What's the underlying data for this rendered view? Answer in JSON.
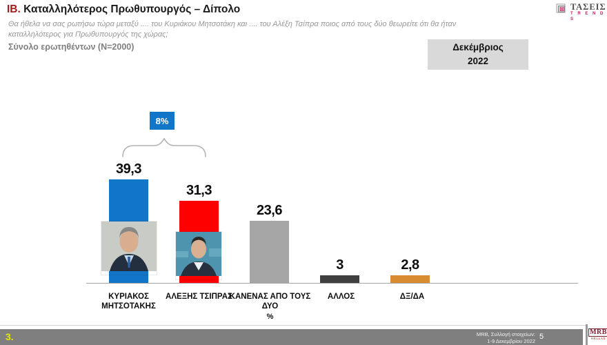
{
  "header": {
    "section_prefix": "ΙΒ.",
    "title": "Καταλληλότερος Πρωθυπουργός – Δίπολο",
    "question_line1": "Θα ήθελα να σας ρωτήσω τώρα μεταξύ .... του Κυριάκου Μητσοτάκη και .... του  Αλέξη Τσίπρα ποιος από τους δύο θεωρείτε ότι θα ήταν",
    "question_line2": "καταλληλότερος για Πρωθυπουργός της χώρας;",
    "sample": "Σύνολο ερωτηθέντων (N=2000)",
    "period": {
      "line1": "Δεκέμβριος",
      "line2": "2022"
    },
    "brand": {
      "name": "ΤΑΣΕΙΣ",
      "subname": "T R E N D S"
    }
  },
  "chart_data": {
    "type": "bar",
    "title": "Καταλληλότερος Πρωθυπουργός – Δίπολο",
    "unit": "%",
    "categories": [
      "ΚΥΡΙΑΚΟΣ ΜΗΤΣΟΤΑΚΗΣ",
      "ΑΛΕΞΗΣ ΤΣΙΠΡΑΣ",
      "ΚΑΝΕΝΑΣ ΑΠΟ ΤΟΥΣ ΔΥΟ",
      "ΑΛΛΟΣ",
      "ΔΞ/ΔΑ"
    ],
    "values": [
      39.3,
      31.3,
      23.6,
      3,
      2.8
    ],
    "value_labels": [
      "39,3",
      "31,3",
      "23,6",
      "3",
      "2,8"
    ],
    "bar_colors": [
      "#1176c8",
      "#fe0000",
      "#a6a6a6",
      "#3f3f3f",
      "#d98c2f"
    ],
    "ylim": [
      0,
      45
    ],
    "grid": false,
    "legend": "none",
    "annotation": {
      "label": "8%",
      "color": "#1176c8",
      "brace_over": [
        "ΚΥΡΙΑΚΟΣ ΜΗΤΣΟΤΑΚΗΣ",
        "ΑΛΕΞΗΣ ΤΣΙΠΡΑΣ"
      ]
    }
  },
  "footer": {
    "slide_number": "3.",
    "source_line1": "MRB, Συλλογή στοιχείων:",
    "source_line2": "1-9 Δεκεμβρίου 2022",
    "page_number": "5",
    "logo_text": "MRB",
    "logo_subtext": "HELLAS"
  }
}
